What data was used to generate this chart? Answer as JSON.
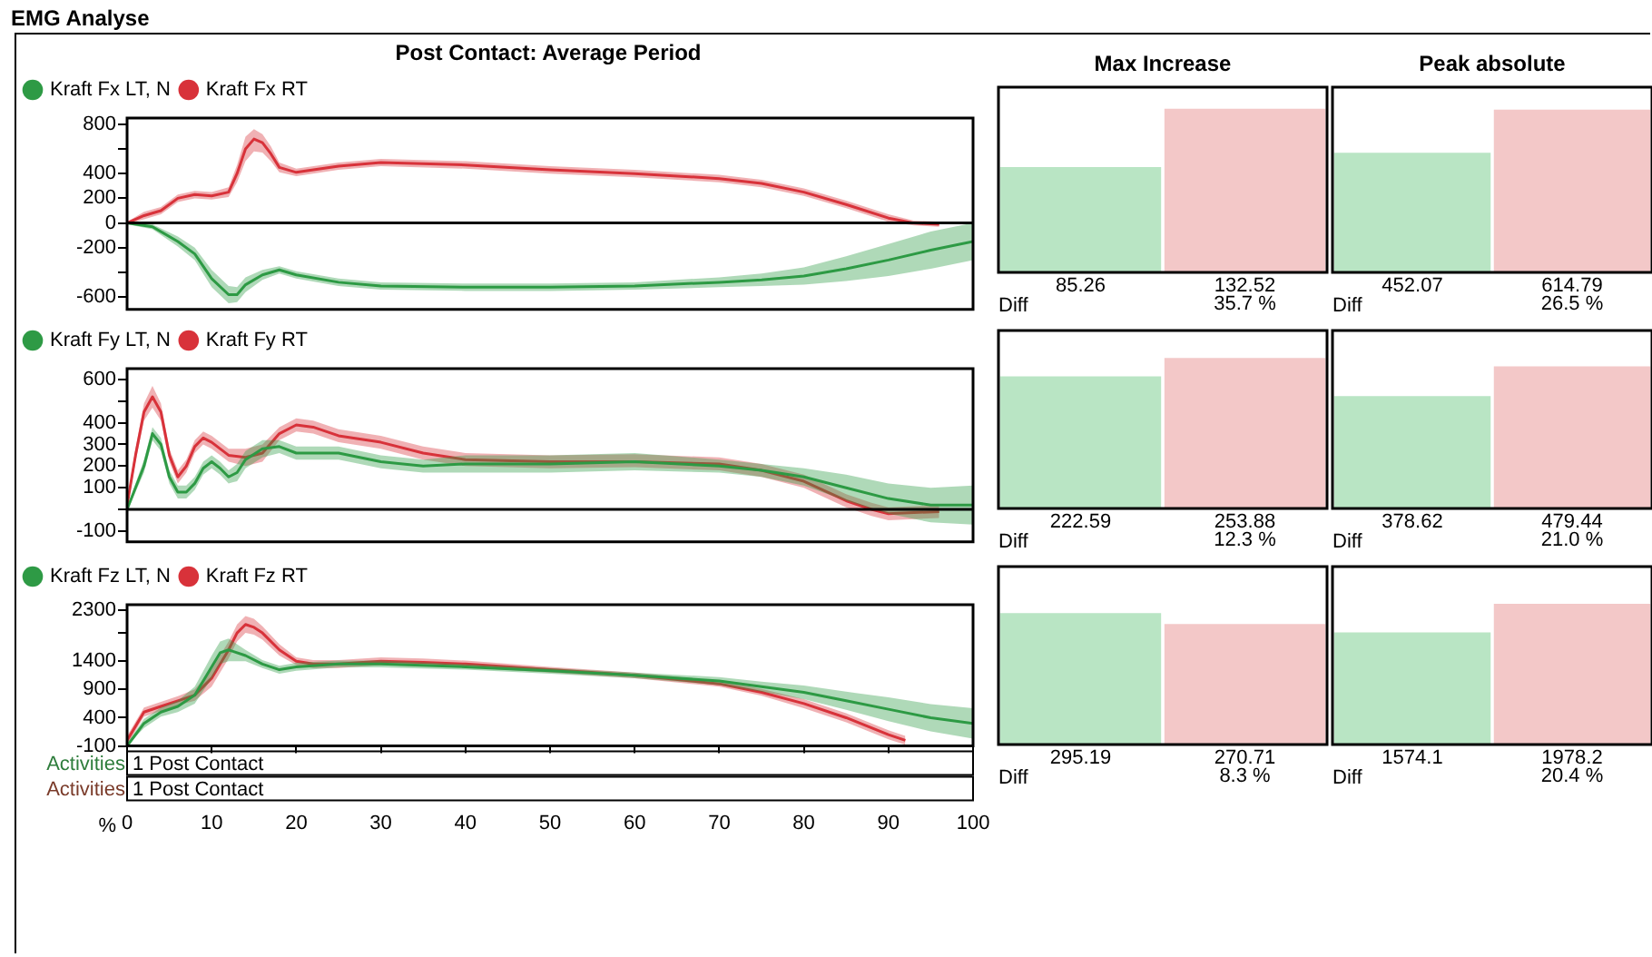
{
  "chart_data": [
    {
      "type": "line",
      "title": "EMG Analyse",
      "subtitle": "Post Contact: Average Period",
      "legend": "top left",
      "tick_labels": "y",
      "xlim": [
        0,
        100
      ],
      "ylim": [
        -700,
        850
      ],
      "yticks": [
        -600,
        {
          "value": -400,
          "label": null
        },
        -200,
        0,
        200,
        400,
        {
          "value": 600,
          "label": null
        },
        800
      ],
      "ref_lines": [
        {
          "axis": "y",
          "value": 0
        }
      ],
      "series": [
        {
          "name": "Kraft Fx LT, N",
          "color": "#2e9a45",
          "x": [
            0,
            3,
            6,
            8,
            10,
            12,
            13,
            14,
            16,
            18,
            20,
            25,
            30,
            40,
            50,
            60,
            70,
            75,
            80,
            85,
            90,
            95,
            100
          ],
          "values": [
            0,
            -30,
            -150,
            -250,
            -450,
            -580,
            -580,
            -500,
            -420,
            -380,
            -420,
            -480,
            -510,
            -520,
            -520,
            -510,
            -480,
            -460,
            -430,
            -370,
            -300,
            -220,
            -150
          ],
          "lower": [
            -10,
            -50,
            -190,
            -300,
            -520,
            -650,
            -640,
            -560,
            -460,
            -410,
            -450,
            -510,
            -540,
            -550,
            -550,
            -540,
            -520,
            -510,
            -500,
            -470,
            -430,
            -370,
            -300
          ],
          "upper": [
            10,
            -10,
            -110,
            -200,
            -380,
            -510,
            -520,
            -440,
            -380,
            -350,
            -390,
            -450,
            -480,
            -490,
            -490,
            -480,
            -440,
            -410,
            -360,
            -270,
            -170,
            -70,
            0
          ]
        },
        {
          "name": "Kraft Fx RT",
          "color": "#d8323a",
          "x": [
            0,
            2,
            4,
            6,
            8,
            10,
            12,
            13,
            14,
            15,
            16,
            17,
            18,
            20,
            25,
            30,
            40,
            50,
            60,
            70,
            75,
            80,
            85,
            90,
            93,
            96
          ],
          "values": [
            0,
            60,
            100,
            200,
            230,
            220,
            250,
            400,
            600,
            680,
            650,
            560,
            450,
            410,
            460,
            490,
            470,
            430,
            400,
            360,
            320,
            250,
            150,
            40,
            0,
            -10
          ],
          "lower": [
            -10,
            30,
            70,
            170,
            200,
            190,
            210,
            330,
            500,
            580,
            570,
            500,
            410,
            380,
            430,
            460,
            440,
            400,
            370,
            330,
            290,
            220,
            120,
            10,
            -20,
            -30
          ],
          "upper": [
            10,
            90,
            130,
            230,
            260,
            250,
            290,
            470,
            700,
            760,
            720,
            620,
            490,
            440,
            490,
            520,
            500,
            460,
            430,
            390,
            350,
            280,
            180,
            70,
            20,
            10
          ]
        }
      ]
    },
    {
      "type": "bar",
      "title": "Max Increase",
      "categories": [
        null,
        null
      ],
      "values": [
        85.26,
        132.52
      ],
      "colors": [
        "#b9e5c4",
        "#f3c8c8"
      ],
      "data_labels": true,
      "tick_labels": false,
      "annotations": [
        "Diff",
        "35.7 %"
      ]
    },
    {
      "type": "bar",
      "title": "Peak absolute",
      "categories": [
        null,
        null
      ],
      "values": [
        452.07,
        614.79
      ],
      "colors": [
        "#b9e5c4",
        "#f3c8c8"
      ],
      "data_labels": true,
      "tick_labels": false,
      "annotations": [
        "Diff",
        "26.5 %"
      ]
    },
    {
      "type": "line",
      "legend": "top left",
      "tick_labels": "y",
      "xlim": [
        0,
        100
      ],
      "ylim": [
        -150,
        650
      ],
      "yticks": [
        -100,
        {
          "value": 0,
          "label": null
        },
        100,
        200,
        300,
        400,
        {
          "value": 500,
          "label": null
        },
        600
      ],
      "ref_lines": [
        {
          "axis": "y",
          "value": 0
        }
      ],
      "series": [
        {
          "name": "Kraft Fy LT, N",
          "color": "#2e9a45",
          "x": [
            0,
            2,
            3,
            4,
            5,
            6,
            7,
            8,
            9,
            10,
            11,
            12,
            13,
            14,
            16,
            18,
            20,
            25,
            30,
            35,
            40,
            50,
            60,
            70,
            75,
            80,
            85,
            90,
            95,
            100
          ],
          "values": [
            0,
            200,
            350,
            300,
            150,
            80,
            80,
            120,
            190,
            220,
            190,
            150,
            170,
            230,
            280,
            290,
            260,
            260,
            220,
            200,
            210,
            210,
            220,
            200,
            180,
            150,
            100,
            50,
            20,
            20
          ],
          "lower": [
            -10,
            170,
            320,
            270,
            120,
            50,
            50,
            90,
            160,
            190,
            160,
            120,
            130,
            190,
            240,
            260,
            230,
            230,
            190,
            170,
            170,
            170,
            180,
            170,
            150,
            110,
            40,
            -20,
            -60,
            -70
          ],
          "upper": [
            10,
            230,
            380,
            330,
            180,
            110,
            110,
            150,
            220,
            250,
            220,
            180,
            210,
            270,
            320,
            320,
            290,
            290,
            250,
            230,
            250,
            250,
            260,
            230,
            210,
            190,
            160,
            120,
            100,
            110
          ]
        },
        {
          "name": "Kraft Fy RT",
          "color": "#d8323a",
          "x": [
            0,
            1,
            2,
            3,
            4,
            5,
            6,
            7,
            8,
            9,
            10,
            12,
            14,
            16,
            18,
            20,
            22,
            25,
            30,
            35,
            40,
            50,
            60,
            70,
            75,
            80,
            85,
            88,
            90,
            96
          ],
          "values": [
            20,
            250,
            450,
            520,
            450,
            250,
            150,
            200,
            290,
            330,
            310,
            250,
            240,
            260,
            350,
            390,
            380,
            340,
            310,
            260,
            230,
            220,
            220,
            210,
            180,
            130,
            40,
            0,
            -20,
            -10
          ],
          "lower": [
            0,
            220,
            410,
            470,
            410,
            220,
            120,
            170,
            260,
            300,
            280,
            220,
            200,
            220,
            320,
            360,
            350,
            310,
            280,
            230,
            200,
            190,
            195,
            180,
            150,
            100,
            10,
            -30,
            -50,
            -40
          ],
          "upper": [
            40,
            280,
            490,
            570,
            490,
            280,
            180,
            230,
            320,
            360,
            340,
            280,
            280,
            300,
            380,
            420,
            410,
            370,
            340,
            290,
            260,
            250,
            255,
            240,
            210,
            160,
            70,
            30,
            10,
            20
          ]
        }
      ]
    },
    {
      "type": "bar",
      "categories": [
        null,
        null
      ],
      "values": [
        222.59,
        253.88
      ],
      "colors": [
        "#b9e5c4",
        "#f3c8c8"
      ],
      "data_labels": true,
      "tick_labels": false,
      "annotations": [
        "Diff",
        "12.3 %"
      ]
    },
    {
      "type": "bar",
      "categories": [
        null,
        null
      ],
      "values": [
        378.62,
        479.44
      ],
      "colors": [
        "#b9e5c4",
        "#f3c8c8"
      ],
      "data_labels": true,
      "tick_labels": false,
      "annotations": [
        "Diff",
        "21.0 %"
      ]
    },
    {
      "type": "line",
      "legend": "top left",
      "xlabel": "%",
      "xlim": [
        0,
        100
      ],
      "xticks": [
        0,
        10,
        20,
        30,
        40,
        50,
        60,
        70,
        80,
        90,
        100
      ],
      "ylim": [
        -100,
        2400
      ],
      "yticks": [
        -100,
        400,
        900,
        1400,
        {
          "value": 1900,
          "label": null
        },
        2300
      ],
      "annotations": [
        "Activities",
        "1 Post Contact",
        "Activities",
        "1 Post Contact"
      ],
      "series": [
        {
          "name": "Kraft Fz LT, N",
          "color": "#2e9a45",
          "x": [
            0,
            2,
            4,
            6,
            8,
            10,
            11,
            12,
            14,
            16,
            18,
            20,
            25,
            30,
            40,
            50,
            60,
            70,
            75,
            80,
            85,
            90,
            95,
            100
          ],
          "values": [
            -100,
            300,
            500,
            600,
            800,
            1300,
            1550,
            1600,
            1500,
            1350,
            1250,
            1300,
            1350,
            1350,
            1300,
            1230,
            1150,
            1050,
            950,
            850,
            700,
            550,
            400,
            300
          ],
          "lower": [
            -100,
            220,
            420,
            500,
            650,
            1100,
            1350,
            1400,
            1400,
            1280,
            1180,
            1230,
            1290,
            1290,
            1250,
            1180,
            1100,
            980,
            860,
            730,
            540,
            340,
            160,
            30
          ],
          "upper": [
            -50,
            380,
            580,
            700,
            950,
            1500,
            1750,
            1800,
            1600,
            1420,
            1320,
            1370,
            1410,
            1410,
            1350,
            1280,
            1200,
            1120,
            1040,
            970,
            860,
            760,
            640,
            570
          ]
        },
        {
          "name": "Kraft Fz RT",
          "color": "#d8323a",
          "x": [
            0,
            2,
            4,
            6,
            8,
            10,
            12,
            13,
            14,
            15,
            16,
            18,
            20,
            22,
            25,
            30,
            35,
            40,
            50,
            60,
            70,
            75,
            80,
            85,
            90,
            92
          ],
          "values": [
            0,
            500,
            600,
            700,
            800,
            1100,
            1600,
            1900,
            2050,
            2000,
            1900,
            1600,
            1400,
            1350,
            1350,
            1400,
            1380,
            1350,
            1250,
            1150,
            1000,
            850,
            650,
            400,
            100,
            0
          ],
          "lower": [
            -80,
            420,
            520,
            620,
            700,
            950,
            1450,
            1750,
            1900,
            1870,
            1780,
            1500,
            1330,
            1280,
            1280,
            1330,
            1310,
            1290,
            1200,
            1100,
            950,
            790,
            570,
            320,
            20,
            -80
          ],
          "upper": [
            80,
            580,
            680,
            780,
            900,
            1250,
            1750,
            2050,
            2200,
            2150,
            2020,
            1700,
            1470,
            1420,
            1420,
            1470,
            1450,
            1410,
            1300,
            1200,
            1050,
            910,
            730,
            480,
            180,
            80
          ]
        }
      ]
    },
    {
      "type": "bar",
      "categories": [
        null,
        null
      ],
      "values": [
        295.19,
        270.71
      ],
      "colors": [
        "#b9e5c4",
        "#f3c8c8"
      ],
      "data_labels": true,
      "tick_labels": false,
      "annotations": [
        "Diff",
        "8.3 %"
      ]
    },
    {
      "type": "bar",
      "categories": [
        null,
        null
      ],
      "values": [
        1574.1,
        1978.2
      ],
      "colors": [
        "#b9e5c4",
        "#f3c8c8"
      ],
      "data_labels": true,
      "tick_labels": false,
      "annotations": [
        "Diff",
        "20.4 %"
      ]
    }
  ]
}
